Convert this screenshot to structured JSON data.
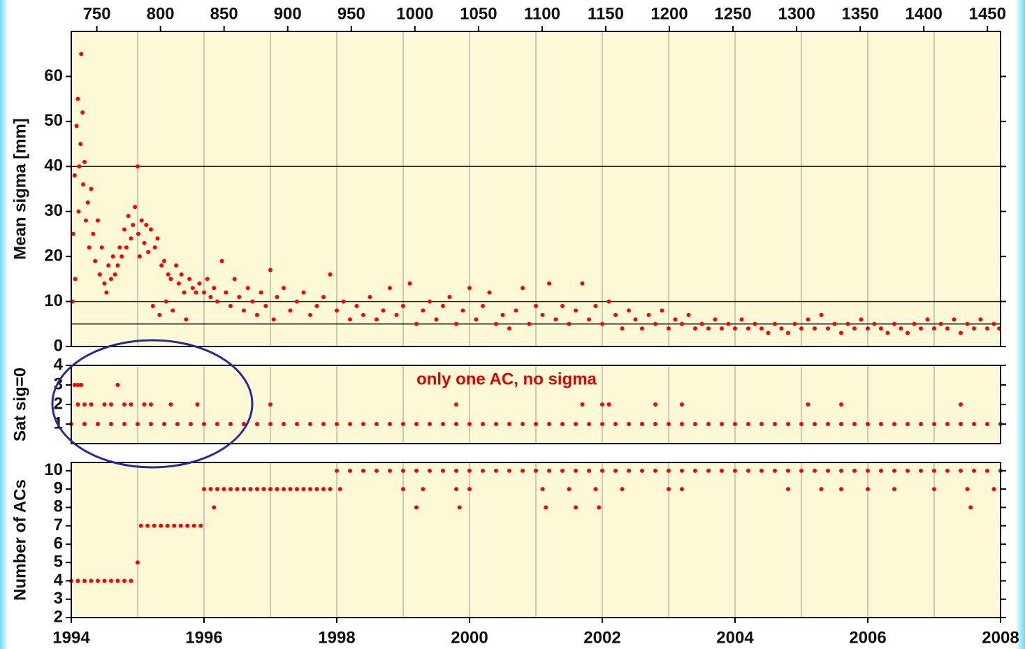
{
  "x_grid": [
    1995,
    1996,
    1997,
    1998,
    1999,
    2000,
    2001,
    2002,
    2003,
    2004,
    2005,
    2006,
    2007
  ],
  "chart_data": [
    {
      "type": "scatter",
      "ylabel": "Mean sigma [mm]",
      "color": "#ff0000",
      "xlim": [
        1994,
        2008
      ],
      "ylim": [
        0,
        70
      ],
      "yticks": [
        0,
        10,
        20,
        30,
        40,
        50,
        60
      ],
      "hlines": [
        5,
        10,
        40
      ],
      "x2lim": [
        729.9,
        1460.3
      ],
      "x2ticks": [
        750,
        800,
        850,
        900,
        950,
        1000,
        1050,
        1100,
        1150,
        1200,
        1250,
        1300,
        1350,
        1400,
        1450
      ],
      "x": [
        1994.02,
        1994.03,
        1994.05,
        1994.06,
        1994.08,
        1994.1,
        1994.11,
        1994.12,
        1994.14,
        1994.15,
        1994.17,
        1994.18,
        1994.2,
        1994.22,
        1994.25,
        1994.27,
        1994.3,
        1994.33,
        1994.36,
        1994.4,
        1994.43,
        1994.46,
        1994.5,
        1994.53,
        1994.56,
        1994.6,
        1994.63,
        1994.66,
        1994.7,
        1994.73,
        1994.76,
        1994.8,
        1994.83,
        1994.86,
        1994.9,
        1994.93,
        1994.96,
        1995.0,
        1995.01,
        1995.03,
        1995.06,
        1995.1,
        1995.13,
        1995.16,
        1995.2,
        1995.23,
        1995.26,
        1995.3,
        1995.33,
        1995.36,
        1995.4,
        1995.43,
        1995.46,
        1995.5,
        1995.53,
        1995.58,
        1995.62,
        1995.66,
        1995.7,
        1995.73,
        1995.78,
        1995.83,
        1995.88,
        1995.93,
        1996.0,
        1996.05,
        1996.1,
        1996.15,
        1996.2,
        1996.27,
        1996.33,
        1996.4,
        1996.46,
        1996.53,
        1996.6,
        1996.66,
        1996.73,
        1996.8,
        1996.86,
        1996.93,
        1997.0,
        1997.05,
        1997.1,
        1997.2,
        1997.3,
        1997.4,
        1997.5,
        1997.6,
        1997.7,
        1997.8,
        1997.9,
        1998.0,
        1998.1,
        1998.2,
        1998.3,
        1998.4,
        1998.5,
        1998.6,
        1998.7,
        1998.8,
        1998.9,
        1999.0,
        1999.1,
        1999.2,
        1999.3,
        1999.4,
        1999.5,
        1999.6,
        1999.7,
        1999.8,
        1999.9,
        2000.0,
        2000.1,
        2000.2,
        2000.3,
        2000.4,
        2000.5,
        2000.6,
        2000.7,
        2000.8,
        2000.9,
        2001.0,
        2001.1,
        2001.2,
        2001.3,
        2001.4,
        2001.5,
        2001.6,
        2001.7,
        2001.8,
        2001.9,
        2002.0,
        2002.1,
        2002.2,
        2002.3,
        2002.4,
        2002.5,
        2002.6,
        2002.7,
        2002.8,
        2002.9,
        2003.0,
        2003.1,
        2003.2,
        2003.3,
        2003.4,
        2003.5,
        2003.6,
        2003.7,
        2003.8,
        2003.9,
        2004.0,
        2004.1,
        2004.2,
        2004.3,
        2004.4,
        2004.5,
        2004.6,
        2004.7,
        2004.8,
        2004.9,
        2005.0,
        2005.1,
        2005.2,
        2005.3,
        2005.4,
        2005.5,
        2005.6,
        2005.7,
        2005.8,
        2005.9,
        2006.0,
        2006.1,
        2006.2,
        2006.3,
        2006.4,
        2006.5,
        2006.6,
        2006.7,
        2006.8,
        2006.9,
        2007.0,
        2007.1,
        2007.2,
        2007.3,
        2007.4,
        2007.5,
        2007.6,
        2007.7,
        2007.8,
        2007.9,
        2007.98
      ],
      "values": [
        10,
        25,
        38,
        15,
        49,
        55,
        30,
        40,
        45,
        65,
        52,
        36,
        41,
        28,
        32,
        22,
        35,
        25,
        19,
        28,
        16,
        22,
        14,
        12,
        18,
        15,
        20,
        16,
        18,
        22,
        20,
        26,
        22,
        29,
        24,
        27,
        31,
        40,
        25,
        20,
        28,
        23,
        27,
        21,
        26,
        9,
        22,
        24,
        7,
        18,
        19,
        10,
        16,
        15,
        8,
        18,
        14,
        16,
        12,
        6,
        15,
        13,
        12,
        14,
        12,
        15,
        11,
        13,
        10,
        19,
        12,
        9,
        15,
        11,
        8,
        13,
        10,
        7,
        12,
        9,
        17,
        6,
        11,
        13,
        8,
        10,
        12,
        7,
        9,
        11,
        16,
        8,
        10,
        6,
        9,
        7,
        11,
        6,
        8,
        13,
        7,
        9,
        14,
        5,
        8,
        10,
        6,
        9,
        11,
        5,
        8,
        13,
        6,
        9,
        12,
        5,
        7,
        4,
        8,
        13,
        5,
        9,
        7,
        14,
        6,
        9,
        5,
        8,
        14,
        6,
        9,
        5,
        10,
        7,
        4,
        8,
        6,
        4,
        7,
        5,
        8,
        4,
        6,
        5,
        7,
        4,
        5,
        4,
        6,
        4,
        5,
        4,
        6,
        4,
        5,
        4,
        3,
        5,
        4,
        3,
        5,
        4,
        6,
        4,
        7,
        4,
        5,
        3,
        5,
        4,
        6,
        4,
        5,
        4,
        3,
        5,
        4,
        3,
        5,
        4,
        6,
        4,
        5,
        4,
        6,
        3,
        5,
        4,
        6,
        4,
        5,
        4
      ]
    },
    {
      "type": "scatter",
      "ylabel": "Sat sig=0",
      "color": "#ff0000",
      "annotation": "only one AC, no sigma",
      "xlim": [
        1994,
        2008
      ],
      "ylim": [
        0,
        4
      ],
      "yticks": [
        1,
        2,
        3,
        4
      ],
      "x": [
        1994.05,
        1994.1,
        1994.15,
        1994.7,
        1994.1,
        1994.2,
        1994.3,
        1994.5,
        1994.6,
        1994.8,
        1994.9,
        1995.1,
        1995.2,
        1995.5,
        1995.9,
        1997.0,
        1999.8,
        2001.7,
        2002.0,
        2002.1,
        2002.8,
        2003.2,
        2005.1,
        2005.6,
        2007.4,
        1994.0,
        1994.2,
        1994.4,
        1994.6,
        1994.8,
        1995.0,
        1995.2,
        1995.4,
        1995.6,
        1995.8,
        1996.0,
        1996.2,
        1996.4,
        1996.6,
        1996.8,
        1997.0,
        1997.2,
        1997.4,
        1997.6,
        1997.8,
        1998.0,
        1998.2,
        1998.4,
        1998.6,
        1998.8,
        1999.0,
        1999.2,
        1999.4,
        1999.6,
        1999.8,
        2000.0,
        2000.2,
        2000.4,
        2000.6,
        2000.8,
        2001.0,
        2001.2,
        2001.4,
        2001.6,
        2001.8,
        2002.0,
        2002.2,
        2002.4,
        2002.6,
        2002.8,
        2003.0,
        2003.2,
        2003.4,
        2003.6,
        2003.8,
        2004.0,
        2004.2,
        2004.4,
        2004.6,
        2004.8,
        2005.0,
        2005.2,
        2005.4,
        2005.6,
        2005.8,
        2006.0,
        2006.2,
        2006.4,
        2006.6,
        2006.8,
        2007.0,
        2007.2,
        2007.4,
        2007.6,
        2007.8,
        2008.0
      ],
      "values": [
        3,
        3,
        3,
        3,
        2,
        2,
        2,
        2,
        2,
        2,
        2,
        2,
        2,
        2,
        2,
        2,
        2,
        2,
        2,
        2,
        2,
        2,
        2,
        2,
        2,
        1,
        1,
        1,
        1,
        1,
        1,
        1,
        1,
        1,
        1,
        1,
        1,
        1,
        1,
        1,
        1,
        1,
        1,
        1,
        1,
        1,
        1,
        1,
        1,
        1,
        1,
        1,
        1,
        1,
        1,
        1,
        1,
        1,
        1,
        1,
        1,
        1,
        1,
        1,
        1,
        1,
        1,
        1,
        1,
        1,
        1,
        1,
        1,
        1,
        1,
        1,
        1,
        1,
        1,
        1,
        1,
        1,
        1,
        1,
        1,
        1,
        1,
        1,
        1,
        1,
        1,
        1,
        1,
        1,
        1,
        1
      ]
    },
    {
      "type": "scatter",
      "ylabel": "Number of ACs",
      "color": "#ff0000",
      "xlim": [
        1994,
        2008
      ],
      "ylim": [
        2,
        10.45
      ],
      "yticks": [
        2,
        3,
        4,
        5,
        6,
        7,
        8,
        9,
        10
      ],
      "xticks": [
        1994,
        1996,
        1998,
        2000,
        2002,
        2004,
        2006,
        2008
      ],
      "x": [
        1994.0,
        1994.1,
        1994.2,
        1994.3,
        1994.4,
        1994.5,
        1994.6,
        1994.7,
        1994.8,
        1994.9,
        1995.0,
        1995.05,
        1995.15,
        1995.25,
        1995.35,
        1995.45,
        1995.55,
        1995.65,
        1995.75,
        1995.85,
        1995.95,
        1996.0,
        1996.1,
        1996.2,
        1996.3,
        1996.4,
        1996.5,
        1996.6,
        1996.7,
        1996.8,
        1996.9,
        1997.0,
        1997.1,
        1997.2,
        1997.3,
        1997.4,
        1997.5,
        1997.6,
        1997.7,
        1997.8,
        1997.9,
        1998.0,
        1998.2,
        1998.4,
        1998.6,
        1998.8,
        1999.0,
        1999.2,
        1999.4,
        1999.6,
        1999.8,
        2000.0,
        2000.2,
        2000.4,
        2000.6,
        2000.8,
        2001.0,
        2001.2,
        2001.4,
        2001.6,
        2001.8,
        2002.0,
        2002.2,
        2002.4,
        2002.6,
        2002.8,
        2003.0,
        2003.2,
        2003.4,
        2003.6,
        2003.8,
        2004.0,
        2004.2,
        2004.4,
        2004.6,
        2004.8,
        2005.0,
        2005.2,
        2005.4,
        2005.6,
        2005.8,
        2006.0,
        2006.2,
        2006.4,
        2006.6,
        2006.8,
        2007.0,
        2007.2,
        2007.4,
        2007.6,
        2007.8,
        2008.0,
        1996.15,
        1998.05,
        1999.0,
        1999.2,
        1999.3,
        1999.8,
        1999.85,
        2000.0,
        2001.1,
        2001.15,
        2001.5,
        2001.6,
        2001.9,
        2001.95,
        2002.3,
        2003.0,
        2003.2,
        2004.8,
        2005.3,
        2005.6,
        2006.0,
        2006.4,
        2007.0,
        2007.5,
        2007.55,
        2007.9
      ],
      "values": [
        4,
        4,
        4,
        4,
        4,
        4,
        4,
        4,
        4,
        4,
        5,
        7,
        7,
        7,
        7,
        7,
        7,
        7,
        7,
        7,
        7,
        9,
        9,
        9,
        9,
        9,
        9,
        9,
        9,
        9,
        9,
        9,
        9,
        9,
        9,
        9,
        9,
        9,
        9,
        9,
        9,
        10,
        10,
        10,
        10,
        10,
        10,
        10,
        10,
        10,
        10,
        10,
        10,
        10,
        10,
        10,
        10,
        10,
        10,
        10,
        10,
        10,
        10,
        10,
        10,
        10,
        10,
        10,
        10,
        10,
        10,
        10,
        10,
        10,
        10,
        10,
        10,
        10,
        10,
        10,
        10,
        10,
        10,
        10,
        10,
        10,
        10,
        10,
        10,
        10,
        10,
        10,
        8,
        9,
        9,
        8,
        9,
        9,
        8,
        9,
        9,
        8,
        9,
        8,
        9,
        8,
        9,
        9,
        9,
        9,
        9,
        9,
        9,
        9,
        9,
        9,
        8,
        9
      ]
    }
  ]
}
